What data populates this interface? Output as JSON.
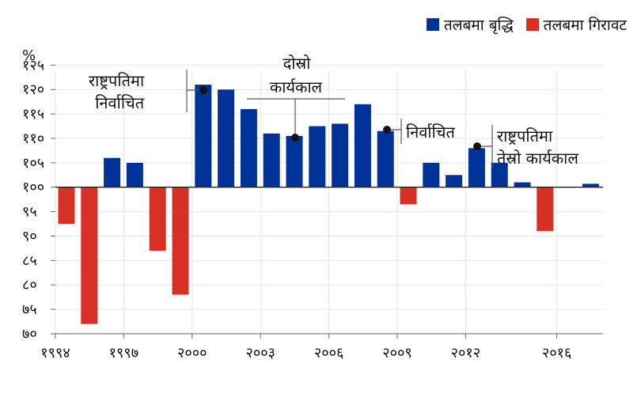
{
  "unit_label": "%",
  "legend": [
    {
      "label": "तलबमा बृद्धि",
      "color": "#003399"
    },
    {
      "label": "तलबमा गिरावट",
      "color": "#d93025"
    }
  ],
  "annotations": {
    "first_term": [
      "राष्ट्रपतिमा",
      "निर्वाचित"
    ],
    "second_term": [
      "दोस्रो",
      "कार्यकाल"
    ],
    "elected": [
      "निर्वाचित"
    ],
    "third_term": [
      "राष्ट्रपतिमा",
      "तेस्रो कार्यकाल"
    ]
  },
  "chart_data": {
    "type": "bar",
    "baseline": 100,
    "ylim": [
      70,
      127
    ],
    "y_ticks": [
      70,
      75,
      80,
      85,
      90,
      95,
      100,
      105,
      110,
      115,
      120,
      125
    ],
    "y_tick_labels": [
      "७०",
      "७५",
      "८०",
      "८५",
      "९०",
      "९५",
      "१००",
      "१०५",
      "११०",
      "११५",
      "१२०",
      "१२५"
    ],
    "x_ticks": [
      {
        "year": 1994,
        "label": "१९९४"
      },
      {
        "year": 1997,
        "label": "१९९७"
      },
      {
        "year": 2000,
        "label": "२०००"
      },
      {
        "year": 2003,
        "label": "२००३"
      },
      {
        "year": 2006,
        "label": "२००६"
      },
      {
        "year": 2009,
        "label": "२००९"
      },
      {
        "year": 2012,
        "label": "२०१२"
      },
      {
        "year": 2016,
        "label": "२०१६"
      }
    ],
    "years": [
      1994,
      1995,
      1996,
      1997,
      1998,
      1999,
      2000,
      2001,
      2002,
      2003,
      2004,
      2005,
      2006,
      2007,
      2008,
      2009,
      2010,
      2011,
      2012,
      2013,
      2014,
      2015,
      2016,
      2017
    ],
    "values": [
      92.5,
      72,
      106,
      105,
      87,
      78,
      121,
      120,
      116,
      111,
      110.5,
      112.5,
      113,
      117,
      111.5,
      96.5,
      105,
      102.5,
      108,
      105,
      101,
      91,
      100,
      100.7
    ],
    "grid": true,
    "legend_position": "top-right"
  }
}
